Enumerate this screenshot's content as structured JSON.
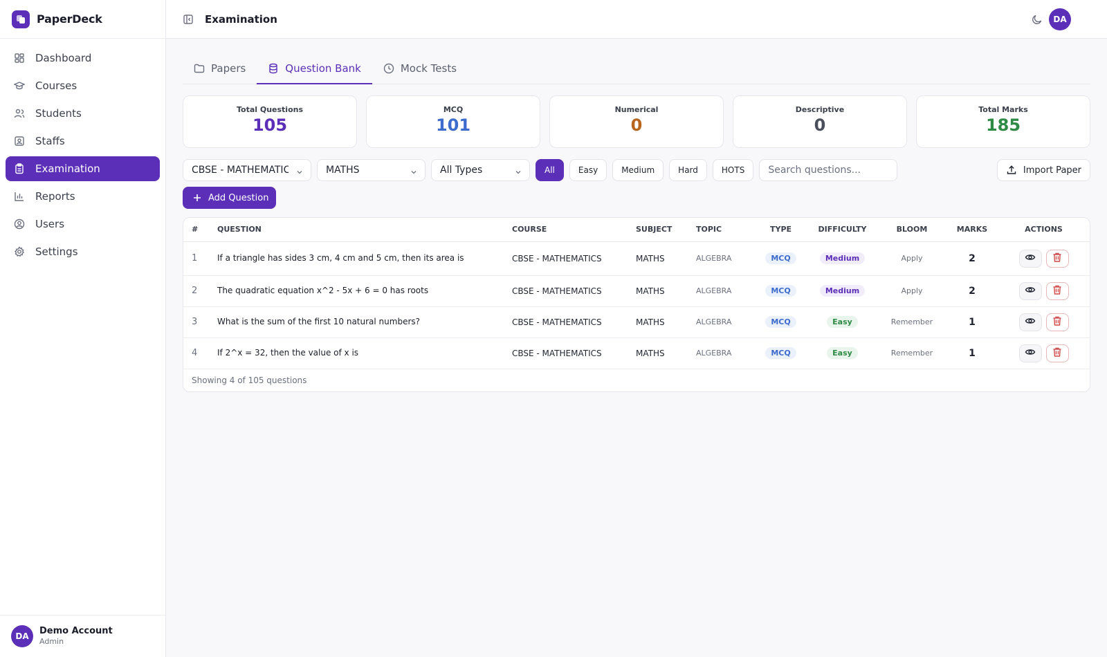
{
  "brand": {
    "name": "PaperDeck"
  },
  "sidebar": {
    "items": [
      {
        "label": "Dashboard",
        "icon": "dashboard-icon"
      },
      {
        "label": "Courses",
        "icon": "graduation-cap-icon"
      },
      {
        "label": "Students",
        "icon": "users-icon"
      },
      {
        "label": "Staffs",
        "icon": "id-badge-icon"
      },
      {
        "label": "Examination",
        "icon": "clipboard-icon",
        "active": true
      },
      {
        "label": "Reports",
        "icon": "bar-chart-icon"
      },
      {
        "label": "Users",
        "icon": "user-circle-icon"
      },
      {
        "label": "Settings",
        "icon": "gear-icon"
      }
    ],
    "account": {
      "initials": "DA",
      "name": "Demo Account",
      "role": "Admin"
    }
  },
  "header": {
    "title": "Examination",
    "avatar_initials": "DA"
  },
  "tabs": [
    {
      "label": "Papers",
      "icon": "folder-icon"
    },
    {
      "label": "Question Bank",
      "icon": "database-icon",
      "active": true
    },
    {
      "label": "Mock Tests",
      "icon": "clock-icon"
    }
  ],
  "stats": [
    {
      "label": "Total Questions",
      "value": "105",
      "color": "#5b2fb8"
    },
    {
      "label": "MCQ",
      "value": "101",
      "color": "#3d6ccc"
    },
    {
      "label": "Numerical",
      "value": "0",
      "color": "#b8651f"
    },
    {
      "label": "Descriptive",
      "value": "0",
      "color": "#4a4f5c"
    },
    {
      "label": "Total Marks",
      "value": "185",
      "color": "#2f8a46"
    }
  ],
  "filters": {
    "course": "CBSE - MATHEMATICS",
    "subject": "MATHS",
    "type": "All Types",
    "difficulty_pills": [
      "All",
      "Easy",
      "Medium",
      "Hard",
      "HOTS"
    ],
    "active_difficulty": "All",
    "search_placeholder": "Search questions...",
    "import_label": "Import Paper"
  },
  "add_question_label": "Add Question",
  "table": {
    "headers": [
      "#",
      "QUESTION",
      "COURSE",
      "SUBJECT",
      "TOPIC",
      "TYPE",
      "DIFFICULTY",
      "BLOOM",
      "MARKS",
      "ACTIONS"
    ],
    "rows": [
      {
        "num": "1",
        "question": "If a triangle has sides 3 cm, 4 cm and 5 cm, then its area is",
        "course": "CBSE - MATHEMATICS",
        "subject": "MATHS",
        "topic": "ALGEBRA",
        "type": "MCQ",
        "difficulty": "Medium",
        "bloom": "Apply",
        "marks": "2"
      },
      {
        "num": "2",
        "question": "The quadratic equation x^2 - 5x + 6 = 0 has roots",
        "course": "CBSE - MATHEMATICS",
        "subject": "MATHS",
        "topic": "ALGEBRA",
        "type": "MCQ",
        "difficulty": "Medium",
        "bloom": "Apply",
        "marks": "2"
      },
      {
        "num": "3",
        "question": "What is the sum of the first 10 natural numbers?",
        "course": "CBSE - MATHEMATICS",
        "subject": "MATHS",
        "topic": "ALGEBRA",
        "type": "MCQ",
        "difficulty": "Easy",
        "bloom": "Remember",
        "marks": "1"
      },
      {
        "num": "4",
        "question": "If 2^x = 32, then the value of x is",
        "course": "CBSE - MATHEMATICS",
        "subject": "MATHS",
        "topic": "ALGEBRA",
        "type": "MCQ",
        "difficulty": "Easy",
        "bloom": "Remember",
        "marks": "1"
      }
    ],
    "footer": "Showing 4 of 105 questions"
  }
}
